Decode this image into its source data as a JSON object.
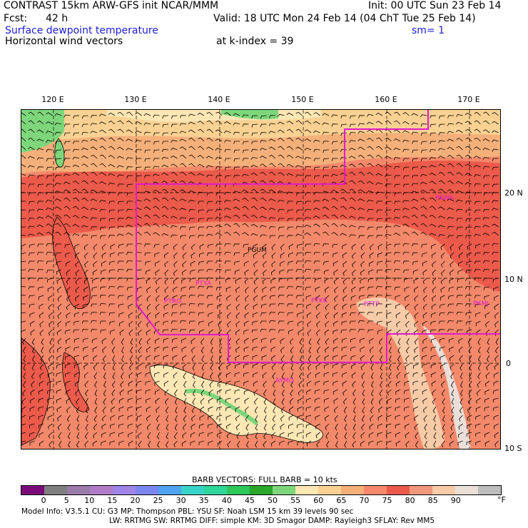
{
  "header": {
    "title": "CONTRAST 15km ARW-GFS init   NCAR/MMM",
    "init": "Init: 00 UTC Sun 23 Feb 14",
    "fcst_label": "Fcst:",
    "fcst_value": "42 h",
    "valid": "Valid: 18 UTC Mon 24 Feb 14 (04 ChT Tue 25 Feb 14)",
    "field1": "Surface dewpoint temperature",
    "smoothing": "sm= 1",
    "field2": "Horizontal wind vectors",
    "k_index": "at k-index =  39"
  },
  "map": {
    "lon_labels": [
      "120 E",
      "130 E",
      "140 E",
      "150 E",
      "160 E",
      "170 E"
    ],
    "lat_labels": [
      "20 N",
      "10 N",
      "0",
      "10 S"
    ],
    "stations": [
      "PGUM",
      "PTYA",
      "PTRO",
      "PTKK",
      "PTTP",
      "PKMJ",
      "PKWA",
      "AYMO"
    ]
  },
  "legend": {
    "barb_note": "BARB VECTORS:  FULL BARB = 10 kts",
    "levels": [
      "0",
      "5",
      "10",
      "15",
      "20",
      "25",
      "30",
      "35",
      "40",
      "45",
      "50",
      "55",
      "60",
      "65",
      "70",
      "75",
      "80",
      "85",
      "90"
    ],
    "unit": "°F",
    "colors": [
      "#7a0a7a",
      "#7f7f7f",
      "#9a7aa8",
      "#b07cc8",
      "#9f84e8",
      "#7d86f0",
      "#4fa3f2",
      "#38d4c9",
      "#2fd79a",
      "#2ec75a",
      "#2aa82a",
      "#7ed67a",
      "#fde7b4",
      "#f9d193",
      "#f5b07a",
      "#f3896a",
      "#ec5a4b",
      "#f0977d",
      "#f7cba8",
      "#eadfd8",
      "#bdbdbd"
    ]
  },
  "footer": {
    "line1": "Model Info: V3.5.1    CU: G3      MP: Thompson     PBL: YSU      SF: Noah LSM    15 km   39 levels   90 sec",
    "line2": "LW: RRTMG    SW: RRTMG   DIFF: simple KM: 3D Smagor DAMP: Rayleigh3   SFLAY: Rev MM5"
  }
}
